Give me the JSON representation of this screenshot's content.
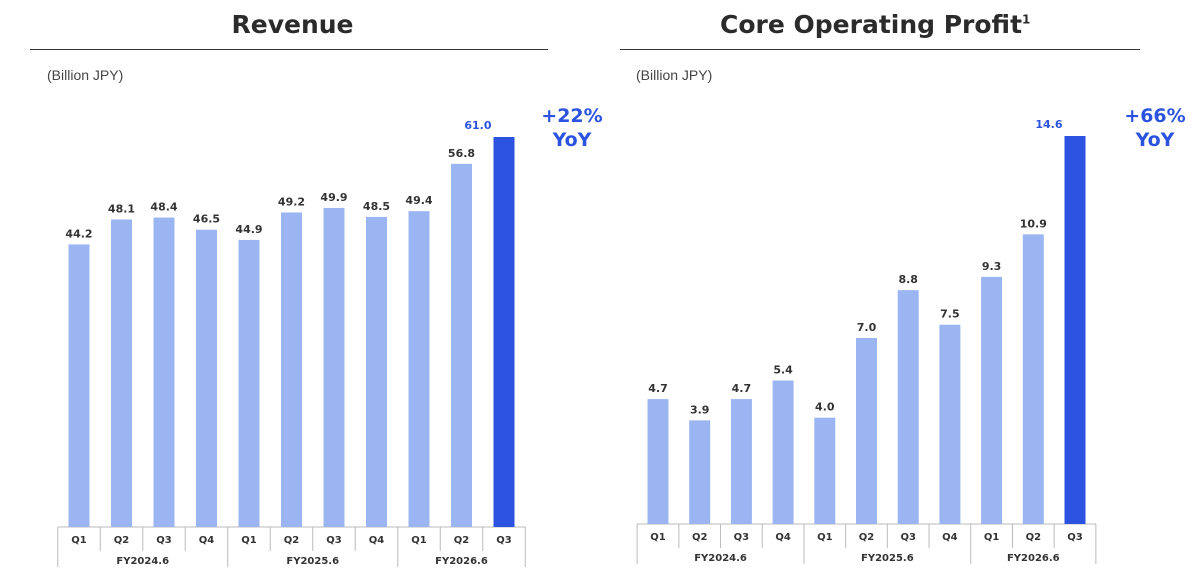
{
  "colors": {
    "bar": "#9bb5f2",
    "highlight": "#2c53e0",
    "axis": "#bbbbbb"
  },
  "chart_data": [
    {
      "type": "bar",
      "title": "Revenue",
      "unit_label": "(Billion JPY)",
      "categories": [
        "Q1",
        "Q2",
        "Q3",
        "Q4",
        "Q1",
        "Q2",
        "Q3",
        "Q4",
        "Q1",
        "Q2",
        "Q3"
      ],
      "groups": [
        {
          "label": "FY2024.6",
          "start": 0,
          "end": 3
        },
        {
          "label": "FY2025.6",
          "start": 4,
          "end": 7
        },
        {
          "label": "FY2026.6",
          "start": 8,
          "end": 10
        }
      ],
      "values": [
        44.2,
        48.1,
        48.4,
        46.5,
        44.9,
        49.2,
        49.9,
        48.5,
        49.4,
        56.8,
        61.0
      ],
      "labels": [
        "44.2",
        "48.1",
        "48.4",
        "46.5",
        "44.9",
        "49.2",
        "49.9",
        "48.5",
        "49.4",
        "56.8",
        "61.0"
      ],
      "highlight_index": 10,
      "yoy_change": "+22%",
      "yoy_text": "YoY",
      "ylim": [
        0,
        61
      ]
    },
    {
      "type": "bar",
      "title": "Core Operating Profit",
      "title_superscript": "1",
      "unit_label": "(Billion JPY)",
      "categories": [
        "Q1",
        "Q2",
        "Q3",
        "Q4",
        "Q1",
        "Q2",
        "Q3",
        "Q4",
        "Q1",
        "Q2",
        "Q3"
      ],
      "groups": [
        {
          "label": "FY2024.6",
          "start": 0,
          "end": 3
        },
        {
          "label": "FY2025.6",
          "start": 4,
          "end": 7
        },
        {
          "label": "FY2026.6",
          "start": 8,
          "end": 10
        }
      ],
      "values": [
        4.7,
        3.9,
        4.7,
        5.4,
        4.0,
        7.0,
        8.8,
        7.5,
        9.3,
        10.9,
        14.6
      ],
      "labels": [
        "4.7",
        "3.9",
        "4.7",
        "5.4",
        "4.0",
        "7.0",
        "8.8",
        "7.5",
        "9.3",
        "10.9",
        "14.6"
      ],
      "highlight_index": 10,
      "yoy_change": "+66%",
      "yoy_text": "YoY",
      "ylim": [
        0,
        14.6
      ]
    }
  ]
}
